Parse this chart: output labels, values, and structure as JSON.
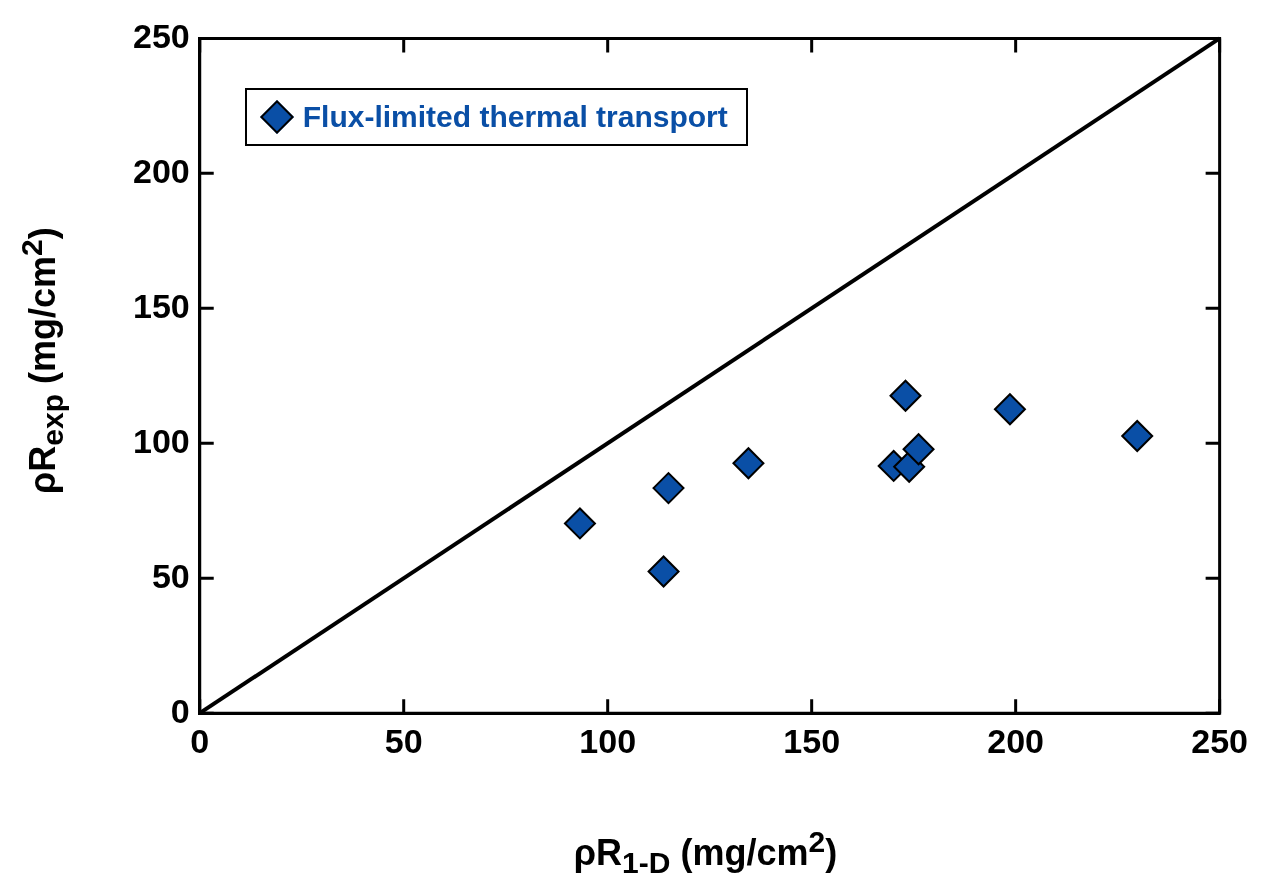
{
  "chart_data": {
    "type": "scatter",
    "xlabel": "ρR$_{1-D}$ (mg/cm$^{2}$)",
    "ylabel": "ρR$_{exp}$ (mg/cm$^{2}$)",
    "xlim": [
      0,
      250
    ],
    "ylim": [
      0,
      250
    ],
    "xticks": [
      0,
      50,
      100,
      150,
      200,
      250
    ],
    "yticks": [
      0,
      50,
      100,
      150,
      200,
      250
    ],
    "marker": "diamond",
    "legend": "top left",
    "series": [
      {
        "name": "Flux-limited thermal transport",
        "color": "#0a4fa6",
        "x": [
          93.2,
          113.7,
          114.9,
          134.5,
          170.1,
          173.0,
          173.9,
          176.2,
          198.6,
          229.8
        ],
        "values": [
          70.3,
          52.5,
          83.4,
          92.6,
          91.6,
          117.6,
          91.3,
          97.8,
          112.6,
          102.7
        ]
      },
      {
        "type": "line",
        "color": "#000000",
        "x": [
          0,
          250
        ],
        "values": [
          0,
          250
        ],
        "marker": "none"
      }
    ]
  }
}
